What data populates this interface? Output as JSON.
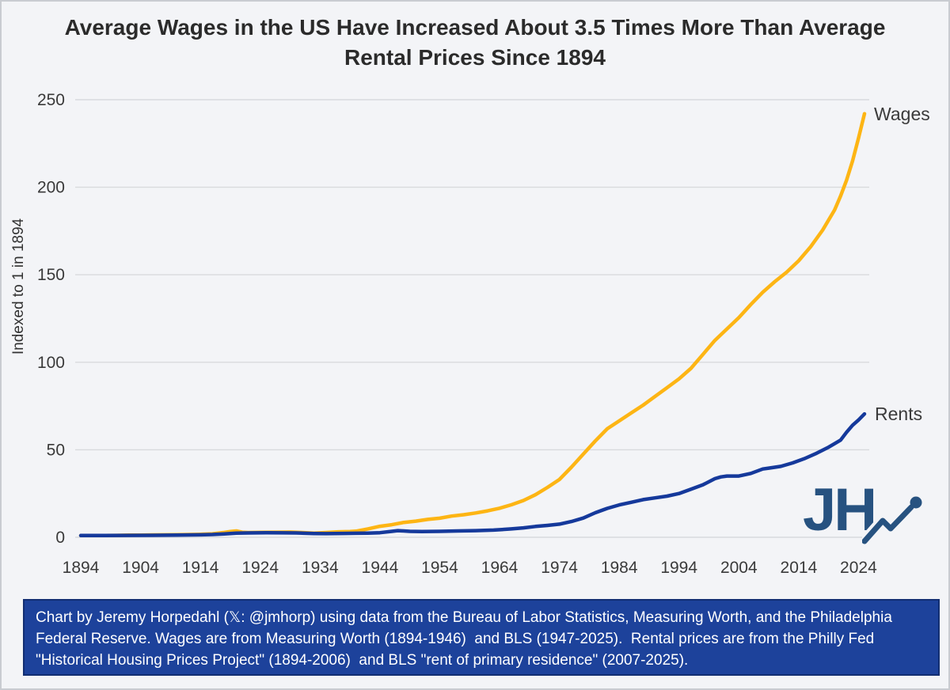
{
  "title": {
    "line1": "Average Wages in the US Have Increased About 3.5 Times More Than Average",
    "line2": "Rental Prices Since 1894"
  },
  "chart_data": {
    "type": "line",
    "title": "Average Wages in the US Have Increased About 3.5 Times More Than Average Rental Prices Since 1894",
    "xlabel": "",
    "ylabel": "Indexed to 1 in 1894",
    "xlim": [
      1894,
      2025
    ],
    "ylim": [
      0,
      250
    ],
    "x_ticks": [
      1894,
      1904,
      1914,
      1924,
      1934,
      1944,
      1954,
      1964,
      1974,
      1984,
      1994,
      2004,
      2014,
      2024
    ],
    "y_ticks": [
      0,
      50,
      100,
      150,
      200,
      250
    ],
    "grid": "horizontal gridlines only",
    "legend_position": "labels at right end of each line",
    "colors": {
      "grid": "#d8dadd",
      "axis_text": "#3a3a3a",
      "background": "#f3f4f7"
    },
    "series": [
      {
        "name": "Wages",
        "color": "#FDB514",
        "points": [
          [
            1894,
            1.0
          ],
          [
            1896,
            1.0
          ],
          [
            1898,
            1.05
          ],
          [
            1900,
            1.1
          ],
          [
            1902,
            1.2
          ],
          [
            1904,
            1.25
          ],
          [
            1906,
            1.35
          ],
          [
            1908,
            1.4
          ],
          [
            1910,
            1.5
          ],
          [
            1912,
            1.6
          ],
          [
            1914,
            1.7
          ],
          [
            1916,
            2.0
          ],
          [
            1918,
            2.8
          ],
          [
            1919,
            3.3
          ],
          [
            1920,
            3.6
          ],
          [
            1921,
            2.9
          ],
          [
            1922,
            2.7
          ],
          [
            1924,
            2.85
          ],
          [
            1926,
            2.9
          ],
          [
            1928,
            2.95
          ],
          [
            1929,
            3.0
          ],
          [
            1931,
            2.7
          ],
          [
            1933,
            2.4
          ],
          [
            1935,
            2.7
          ],
          [
            1937,
            3.1
          ],
          [
            1939,
            3.3
          ],
          [
            1940,
            3.5
          ],
          [
            1942,
            4.8
          ],
          [
            1944,
            6.3
          ],
          [
            1946,
            7.2
          ],
          [
            1948,
            8.5
          ],
          [
            1950,
            9.2
          ],
          [
            1952,
            10.2
          ],
          [
            1954,
            10.9
          ],
          [
            1956,
            12.1
          ],
          [
            1958,
            12.9
          ],
          [
            1960,
            13.9
          ],
          [
            1962,
            15.1
          ],
          [
            1964,
            16.6
          ],
          [
            1966,
            18.6
          ],
          [
            1968,
            21.0
          ],
          [
            1970,
            24.3
          ],
          [
            1972,
            28.5
          ],
          [
            1974,
            33.0
          ],
          [
            1976,
            40.0
          ],
          [
            1978,
            47.5
          ],
          [
            1980,
            55.0
          ],
          [
            1982,
            62.0
          ],
          [
            1984,
            66.5
          ],
          [
            1986,
            71.0
          ],
          [
            1988,
            75.5
          ],
          [
            1990,
            80.5
          ],
          [
            1992,
            85.5
          ],
          [
            1994,
            90.5
          ],
          [
            1996,
            96.5
          ],
          [
            1998,
            104.5
          ],
          [
            2000,
            112.5
          ],
          [
            2002,
            119.0
          ],
          [
            2004,
            125.5
          ],
          [
            2006,
            133.0
          ],
          [
            2008,
            140.0
          ],
          [
            2010,
            146.0
          ],
          [
            2012,
            151.5
          ],
          [
            2014,
            158.0
          ],
          [
            2016,
            166.0
          ],
          [
            2018,
            175.5
          ],
          [
            2020,
            187.0
          ],
          [
            2021,
            195.0
          ],
          [
            2022,
            204.0
          ],
          [
            2023,
            215.0
          ],
          [
            2024,
            228.0
          ],
          [
            2025,
            242.0
          ]
        ]
      },
      {
        "name": "Rents",
        "color": "#15399B",
        "points": [
          [
            1894,
            1.0
          ],
          [
            1898,
            1.0
          ],
          [
            1902,
            1.1
          ],
          [
            1906,
            1.15
          ],
          [
            1910,
            1.2
          ],
          [
            1914,
            1.4
          ],
          [
            1916,
            1.6
          ],
          [
            1918,
            1.95
          ],
          [
            1920,
            2.4
          ],
          [
            1922,
            2.5
          ],
          [
            1925,
            2.6
          ],
          [
            1928,
            2.55
          ],
          [
            1930,
            2.5
          ],
          [
            1933,
            2.15
          ],
          [
            1935,
            2.1
          ],
          [
            1938,
            2.2
          ],
          [
            1940,
            2.3
          ],
          [
            1942,
            2.4
          ],
          [
            1944,
            2.6
          ],
          [
            1946,
            3.4
          ],
          [
            1947,
            3.8
          ],
          [
            1949,
            3.4
          ],
          [
            1951,
            3.3
          ],
          [
            1954,
            3.4
          ],
          [
            1957,
            3.6
          ],
          [
            1960,
            3.8
          ],
          [
            1963,
            4.1
          ],
          [
            1966,
            4.8
          ],
          [
            1968,
            5.4
          ],
          [
            1970,
            6.2
          ],
          [
            1972,
            6.8
          ],
          [
            1974,
            7.5
          ],
          [
            1976,
            9.0
          ],
          [
            1978,
            11.0
          ],
          [
            1980,
            14.0
          ],
          [
            1982,
            16.5
          ],
          [
            1984,
            18.5
          ],
          [
            1986,
            20.0
          ],
          [
            1988,
            21.5
          ],
          [
            1990,
            22.5
          ],
          [
            1992,
            23.5
          ],
          [
            1994,
            25.0
          ],
          [
            1996,
            27.5
          ],
          [
            1998,
            30.0
          ],
          [
            2000,
            33.5
          ],
          [
            2001,
            34.5
          ],
          [
            2002,
            35.0
          ],
          [
            2004,
            35.0
          ],
          [
            2006,
            36.5
          ],
          [
            2008,
            39.0
          ],
          [
            2009,
            39.5
          ],
          [
            2011,
            40.5
          ],
          [
            2013,
            42.5
          ],
          [
            2015,
            45.0
          ],
          [
            2017,
            48.0
          ],
          [
            2019,
            51.5
          ],
          [
            2020,
            53.5
          ],
          [
            2021,
            55.5
          ],
          [
            2022,
            60.0
          ],
          [
            2023,
            64.0
          ],
          [
            2024,
            67.0
          ],
          [
            2025,
            70.5
          ]
        ]
      }
    ]
  },
  "logo": {
    "text": "JH",
    "color": "#275280"
  },
  "footer": {
    "background": "#1D429B",
    "text": "Chart by Jeremy Horpedahl (𝕏: @jmhorp) using data from the Bureau of Labor Statistics, Measuring Worth, and the Philadelphia Federal Reserve. Wages are from Measuring Worth (1894-1946)  and BLS (1947-2025).  Rental prices are from the Philly Fed \"Historical Housing Prices Project\" (1894-2006)  and BLS \"rent of primary residence\" (2007-2025)."
  }
}
